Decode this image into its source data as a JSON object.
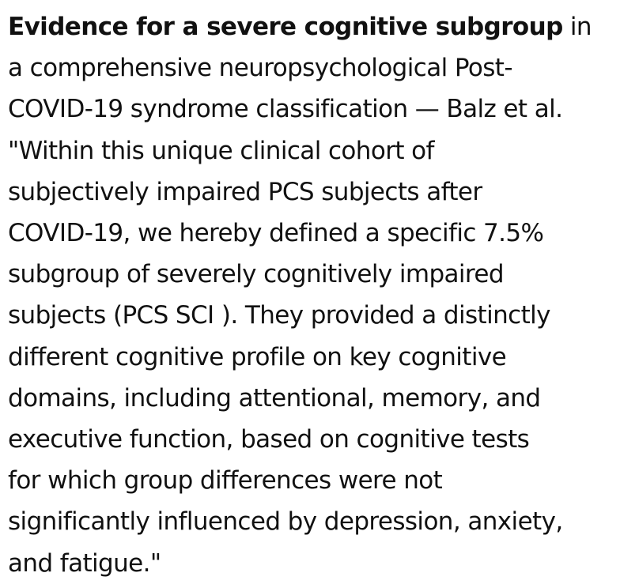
{
  "title_bold": "Evidence for a severe cognitive subgroup",
  "title_rest": " in",
  "citation_lines": [
    "a comprehensive neuropsychological Post-",
    "COVID-19 syndrome classification — Balz et al."
  ],
  "quote_lines": [
    "\"Within this unique clinical cohort of",
    "subjectively impaired PCS subjects after",
    "COVID-19, we hereby defined a specific 7.5%",
    "subgroup of severely cognitively impaired",
    "subjects (PCS SCI ). They provided a distinctly",
    "different cognitive profile on key cognitive",
    "domains, including attentional, memory, and",
    "executive function, based on cognitive tests",
    "for which group differences were not",
    "significantly influenced by depression, anxiety,",
    "and fatigue.\""
  ]
}
